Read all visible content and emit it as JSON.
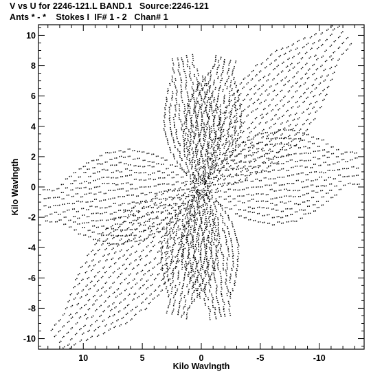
{
  "chart_data": {
    "type": "scatter",
    "title": "V vs U for 2246-121.L BAND.1   Source:2246-121",
    "subtitle": "Ants * - *    Stokes I  IF# 1 - 2   Chan# 1",
    "xlabel": "Kilo Wavlngth",
    "ylabel": "Kilo Wavlngth",
    "xlim": [
      13.8,
      -13.8
    ],
    "ylim": [
      -10.7,
      10.7
    ],
    "x_reversed": true,
    "grid": false,
    "x_ticks": [
      10,
      5,
      0,
      -5,
      -10
    ],
    "x_tick_labels": [
      "10",
      "5",
      "0",
      "-5",
      "-10"
    ],
    "y_ticks": [
      10,
      8,
      6,
      4,
      2,
      0,
      -2,
      -4,
      -6,
      -8,
      -10
    ],
    "y_tick_labels": [
      "10",
      "8",
      "6",
      "4",
      "2",
      "0",
      "-2",
      "-4",
      "-6",
      "-8",
      "-10"
    ],
    "marker_color": "#000000",
    "uv_arms": [
      {
        "u_end": -12.0,
        "v_end": 10.2,
        "dir": [
          -0.76,
          0.65
        ]
      },
      {
        "u_end": -13.2,
        "v_end": 1.3,
        "dir": [
          -0.995,
          0.1
        ]
      },
      {
        "u_end": -2.0,
        "v_end": 8.4,
        "dir": [
          -0.23,
          0.97
        ]
      },
      {
        "u_end": 1.6,
        "v_end": 8.5,
        "dir": [
          0.18,
          0.98
        ]
      }
    ]
  }
}
